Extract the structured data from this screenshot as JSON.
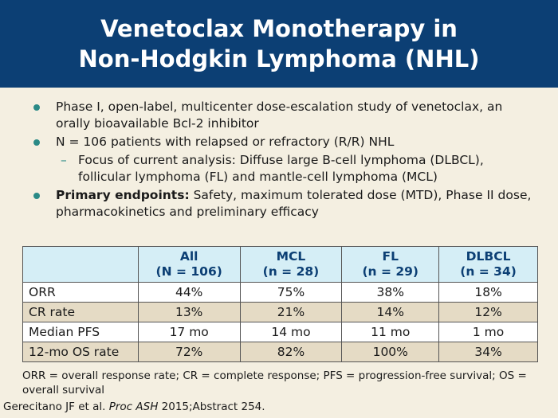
{
  "slide": {
    "title_line1": "Venetoclax Monotherapy in",
    "title_line2": "Non-Hodgkin Lymphoma (NHL)",
    "bullets": [
      {
        "text": "Phase I, open-label, multicenter dose-escalation study of venetoclax, an orally bioavailable Bcl-2 inhibitor"
      },
      {
        "text": "N = 106 patients with relapsed or refractory (R/R) NHL"
      }
    ],
    "sub_bullet": "Focus of current analysis: Diffuse large B-cell lymphoma (DLBCL), follicular lymphoma (FL) and mantle-cell lymphoma (MCL)",
    "endpoints_label": "Primary endpoints:",
    "endpoints_text": " Safety, maximum tolerated dose (MTD), Phase II dose, pharmacokinetics and preliminary efficacy",
    "sub_dash": "–"
  },
  "table": {
    "headers": [
      {
        "line1": "",
        "line2": ""
      },
      {
        "line1": "All",
        "line2": "(N = 106)"
      },
      {
        "line1": "MCL",
        "line2": "(n = 28)"
      },
      {
        "line1": "FL",
        "line2": "(n = 29)"
      },
      {
        "line1": "DLBCL",
        "line2": "(n = 34)"
      }
    ],
    "rows": [
      [
        "ORR",
        "44%",
        "75%",
        "38%",
        "18%"
      ],
      [
        "CR rate",
        "13%",
        "21%",
        "14%",
        "12%"
      ],
      [
        "Median PFS",
        "17 mo",
        "14 mo",
        "11 mo",
        "1 mo"
      ],
      [
        "12-mo OS rate",
        "72%",
        "82%",
        "100%",
        "34%"
      ]
    ]
  },
  "footnote": "ORR = overall response rate; CR = complete response; PFS = progression-free survival; OS = overall survival",
  "citation": {
    "prefix": "Gerecitano JF et al. ",
    "journal": "Proc ASH",
    "suffix": " 2015;Abstract 254."
  },
  "colors": {
    "header_bg": "#0c3f74",
    "background": "#f4efe1",
    "bullet": "#2a8a86",
    "table_header_bg": "#d5eef6",
    "row_alt": "#e5dbc5"
  }
}
